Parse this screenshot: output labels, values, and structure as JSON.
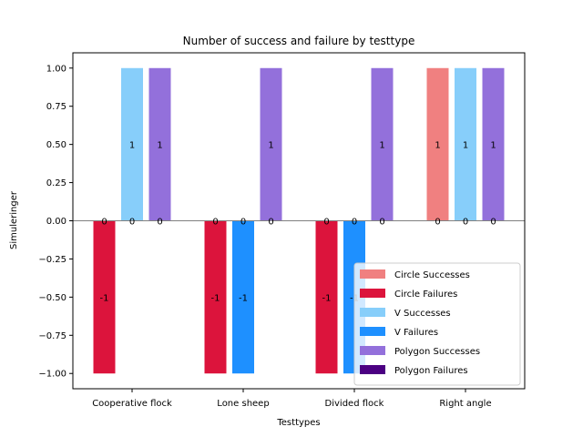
{
  "chart_data": {
    "type": "bar",
    "title": "Number of success and failure by testtype",
    "xlabel": "Testtypes",
    "ylabel": "Simuleringer",
    "ylim": [
      -1.1,
      1.1
    ],
    "yticks": [
      -1.0,
      -0.75,
      -0.5,
      -0.25,
      0.0,
      0.25,
      0.5,
      0.75,
      1.0
    ],
    "ytick_labels": [
      "−1.00",
      "−0.75",
      "−0.50",
      "−0.25",
      "0.00",
      "0.25",
      "0.50",
      "0.75",
      "1.00"
    ],
    "categories": [
      "Cooperative flock",
      "Lone sheep",
      "Divided flock",
      "Right angle"
    ],
    "grid": false,
    "zero_line": true,
    "legend_position": "lower-right",
    "series": [
      {
        "name": "Circle Successes",
        "color": "#f08080",
        "values": [
          0,
          0,
          0,
          1
        ]
      },
      {
        "name": "Circle Failures",
        "color": "#dc143c",
        "values": [
          -1,
          -1,
          -1,
          0
        ]
      },
      {
        "name": "V Successes",
        "color": "#87cefa",
        "values": [
          1,
          0,
          0,
          1
        ]
      },
      {
        "name": "V Failures",
        "color": "#1e90ff",
        "values": [
          0,
          -1,
          -1,
          0
        ]
      },
      {
        "name": "Polygon Successes",
        "color": "#9370db",
        "values": [
          1,
          1,
          1,
          1
        ]
      },
      {
        "name": "Polygon Failures",
        "color": "#4b0082",
        "values": [
          0,
          0,
          0,
          0
        ]
      }
    ],
    "bar_labels": [
      {
        "category": 0,
        "slot": 0,
        "value": 0,
        "text": "0"
      },
      {
        "category": 0,
        "slot": 0,
        "value": -0.5,
        "text": "-1"
      },
      {
        "category": 0,
        "slot": 1,
        "value": 0,
        "text": "0"
      },
      {
        "category": 0,
        "slot": 1,
        "value": 0.5,
        "text": "1"
      },
      {
        "category": 0,
        "slot": 2,
        "value": 0,
        "text": "0"
      },
      {
        "category": 0,
        "slot": 2,
        "value": 0.5,
        "text": "1"
      },
      {
        "category": 1,
        "slot": 0,
        "value": 0,
        "text": "0"
      },
      {
        "category": 1,
        "slot": 0,
        "value": -0.5,
        "text": "-1"
      },
      {
        "category": 1,
        "slot": 1,
        "value": 0,
        "text": "0"
      },
      {
        "category": 1,
        "slot": 1,
        "value": -0.5,
        "text": "-1"
      },
      {
        "category": 1,
        "slot": 2,
        "value": 0,
        "text": "0"
      },
      {
        "category": 1,
        "slot": 2,
        "value": 0.5,
        "text": "1"
      },
      {
        "category": 2,
        "slot": 0,
        "value": 0,
        "text": "0"
      },
      {
        "category": 2,
        "slot": 0,
        "value": -0.5,
        "text": "-1"
      },
      {
        "category": 2,
        "slot": 1,
        "value": 0,
        "text": "0"
      },
      {
        "category": 2,
        "slot": 1,
        "value": -0.5,
        "text": "-1"
      },
      {
        "category": 2,
        "slot": 2,
        "value": 0,
        "text": "0"
      },
      {
        "category": 2,
        "slot": 2,
        "value": 0.5,
        "text": "1"
      },
      {
        "category": 3,
        "slot": 0,
        "value": 0,
        "text": "0"
      },
      {
        "category": 3,
        "slot": 0,
        "value": 0.5,
        "text": "1"
      },
      {
        "category": 3,
        "slot": 1,
        "value": 0,
        "text": "0"
      },
      {
        "category": 3,
        "slot": 1,
        "value": 0.5,
        "text": "1"
      },
      {
        "category": 3,
        "slot": 2,
        "value": 0,
        "text": "0"
      },
      {
        "category": 3,
        "slot": 2,
        "value": 0.5,
        "text": "1"
      }
    ]
  }
}
